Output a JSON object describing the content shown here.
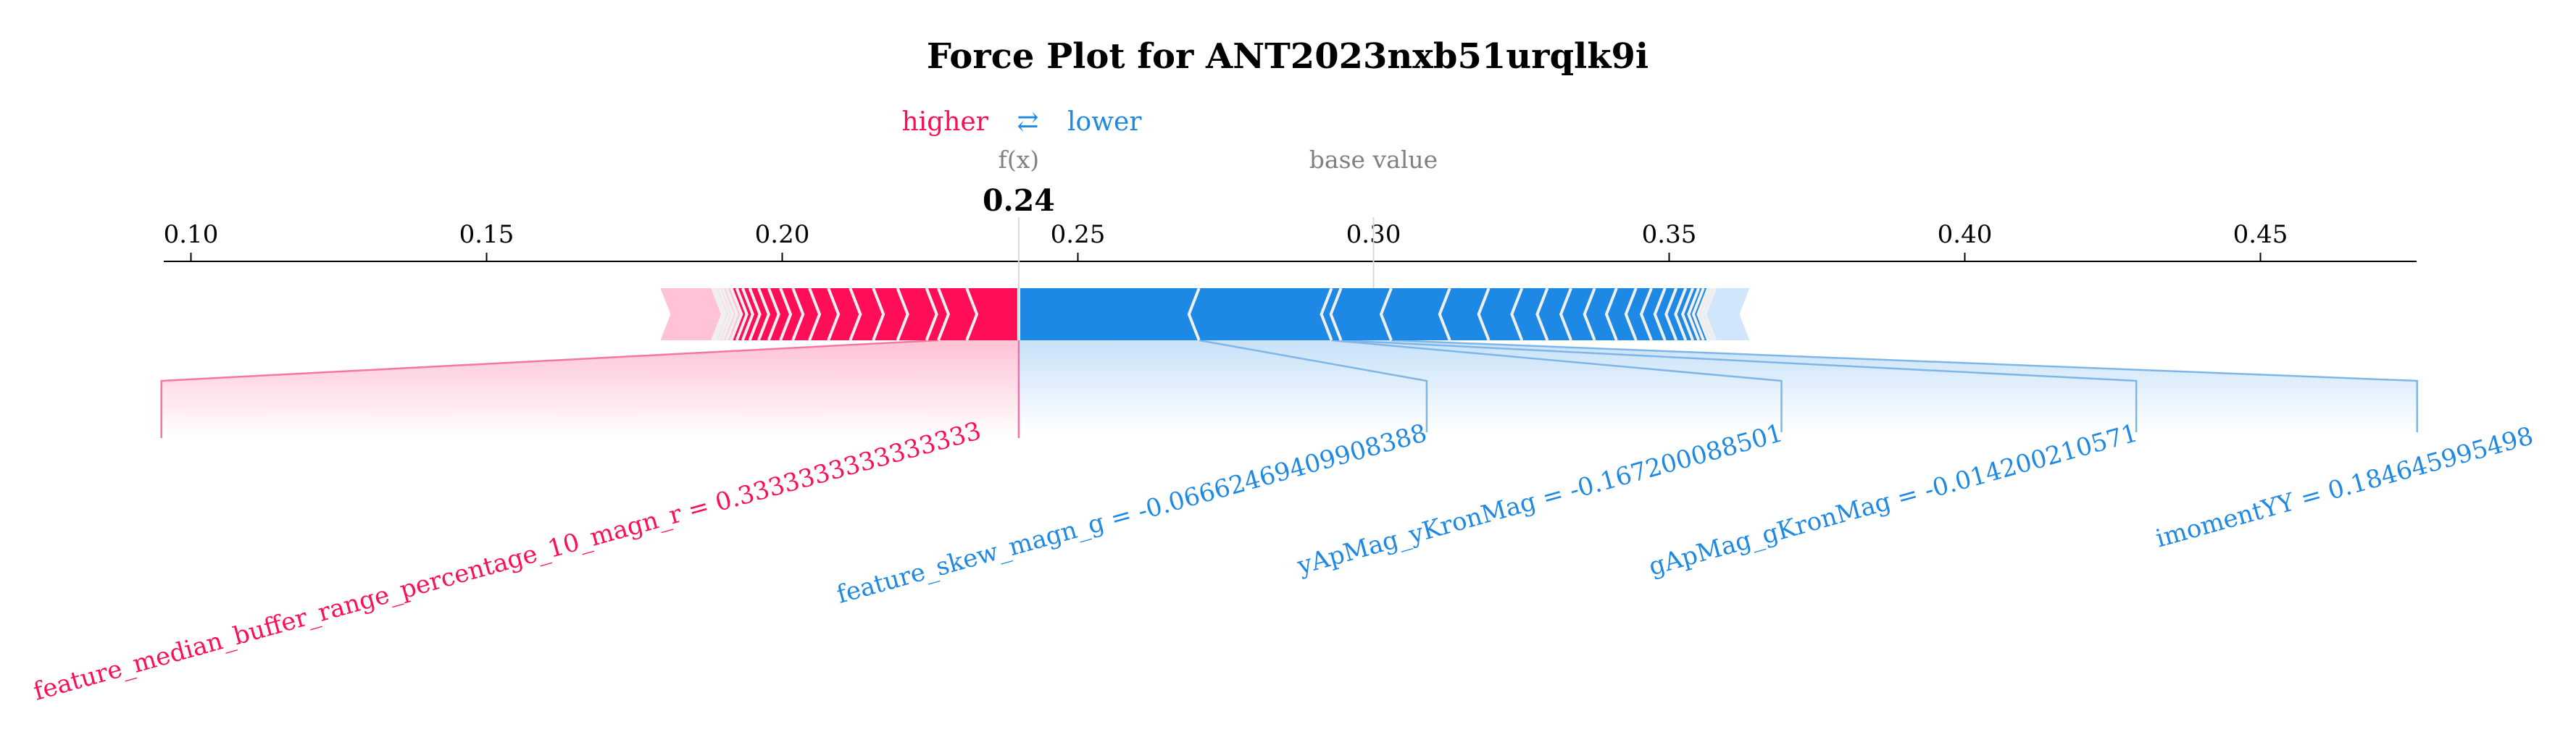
{
  "chart_data": {
    "type": "force",
    "title": "Force Plot for ANT2023nxb51urqlk9i",
    "legend": {
      "higher": "higher",
      "arrows": "⇄",
      "lower": "lower"
    },
    "fx_label": "f(x)",
    "fx_value": 0.24,
    "fx_value_text": "0.24",
    "base_value_label": "base value",
    "base_value": 0.3,
    "xlim": [
      0.095,
      0.477
    ],
    "ticks": [
      {
        "value": 0.1,
        "label": "0.10"
      },
      {
        "value": 0.15,
        "label": "0.15"
      },
      {
        "value": 0.2,
        "label": "0.20"
      },
      {
        "value": 0.25,
        "label": "0.25"
      },
      {
        "value": 0.3,
        "label": "0.30"
      },
      {
        "value": 0.35,
        "label": "0.35"
      },
      {
        "value": 0.4,
        "label": "0.40"
      },
      {
        "value": 0.45,
        "label": "0.45"
      }
    ],
    "positive_extent": [
      0.1794,
      0.24
    ],
    "negative_extent": [
      0.24,
      0.3636
    ],
    "positive_features": [
      {
        "name": "feature_median_buffer_range_percentage_10_magn_r = 0.3333333333333333",
        "start": 0.24,
        "end": 0.2264,
        "label_value": 0.095
      }
    ],
    "negative_features": [
      {
        "name": "feature_skew_magn_g = -0.06662469409908388",
        "start": 0.24,
        "end": 0.2705,
        "label_value": 0.309
      },
      {
        "name": "yApMag_yKronMag = -0.167200088501",
        "start": 0.2705,
        "end": 0.2929,
        "label_value": 0.369
      },
      {
        "name": "gApMag_gKronMag = -0.014200210571",
        "start": 0.2929,
        "end": 0.2945,
        "label_value": 0.429
      },
      {
        "name": "imomentYY = 0.184645995498",
        "start": 0.2945,
        "end": 0.303,
        "label_value": 0.4765
      }
    ],
    "positive_minor_boundaries": [
      0.2312,
      0.2244,
      0.2195,
      0.2154,
      0.2115,
      0.2078,
      0.2046,
      0.2018,
      0.1997,
      0.1977,
      0.196,
      0.1945,
      0.1933,
      0.1923,
      0.1914,
      0.1906,
      0.1899,
      0.1893,
      0.1887,
      0.1882
    ],
    "negative_minor_boundaries": [
      0.3129,
      0.3195,
      0.3251,
      0.3294,
      0.3334,
      0.3374,
      0.3411,
      0.3444,
      0.347,
      0.3493,
      0.3512,
      0.3528,
      0.354,
      0.355,
      0.3558,
      0.3566,
      0.3572,
      0.3578
    ],
    "colors": {
      "positive": "#ff0d57",
      "positive_light": "#ffc3d5",
      "negative": "#1e88e5",
      "negative_light": "#d1e6fa",
      "separator": "#f0f0f0",
      "positive_connector": "#f576a0",
      "negative_connector": "#7fb6e8",
      "muted": "#808080"
    }
  }
}
